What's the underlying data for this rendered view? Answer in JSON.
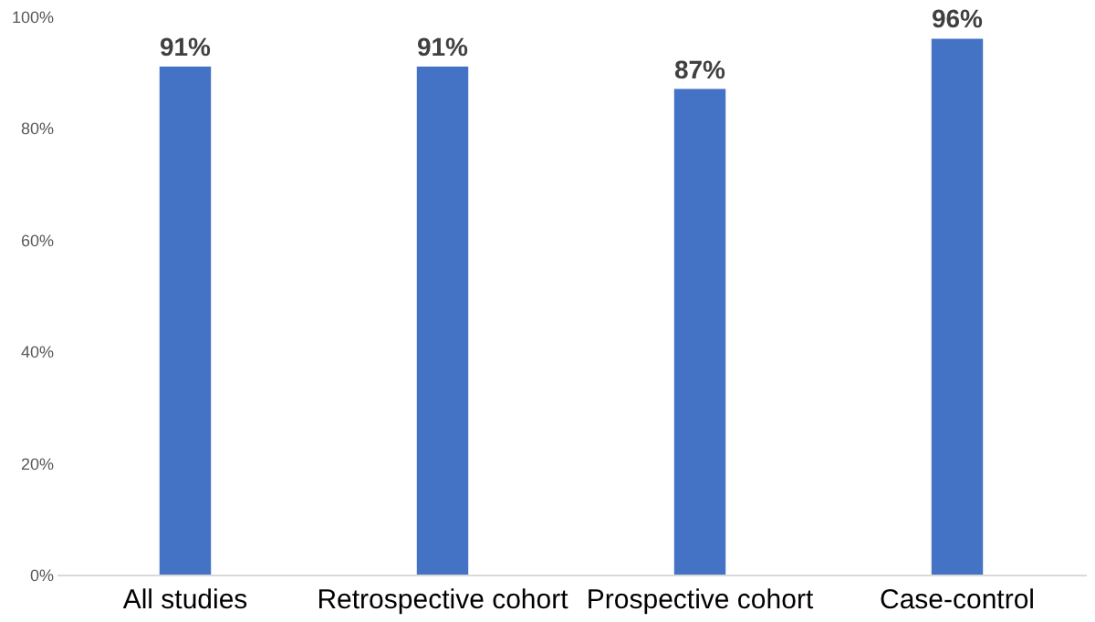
{
  "chart_data": {
    "type": "bar",
    "categories": [
      "All studies",
      "Retrospective cohort",
      "Prospective cohort",
      "Case-control"
    ],
    "values": [
      91,
      91,
      87,
      96
    ],
    "value_labels": [
      "91%",
      "91%",
      "87%",
      "96%"
    ],
    "color": "#4472c4",
    "ylim": [
      0,
      100
    ],
    "yticks": [
      {
        "value": 0,
        "label": "0%"
      },
      {
        "value": 20,
        "label": "20%"
      },
      {
        "value": 40,
        "label": "40%"
      },
      {
        "value": 60,
        "label": "60%"
      },
      {
        "value": 80,
        "label": "80%"
      },
      {
        "value": 100,
        "label": "100%"
      }
    ],
    "grid": false
  }
}
